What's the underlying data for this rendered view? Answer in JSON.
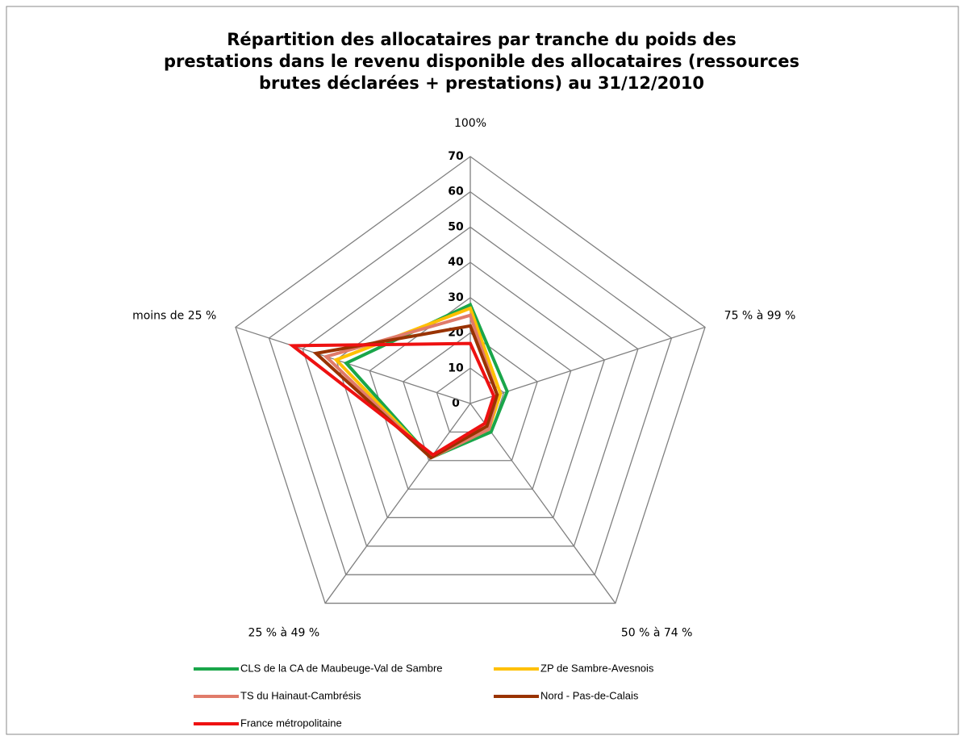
{
  "chart_data": {
    "type": "radar",
    "title": "Répartition des allocataires par tranche du poids des prestations dans le revenu disponible des allocataires (ressources brutes déclarées + prestations) au 31/12/2010",
    "categories": [
      "100%",
      "75 % à 99 %",
      "50 % à 74 %",
      "25 % à 49 %",
      "moins de 25 %"
    ],
    "ylim": [
      0,
      70
    ],
    "yticks": [
      0,
      10,
      20,
      30,
      40,
      50,
      60,
      70
    ],
    "grid": true,
    "legend": "bottom",
    "series": [
      {
        "name": "CLS de la CA de Maubeuge-Val de Sambre",
        "color": "#1aa64a",
        "values": [
          28,
          11,
          10,
          19,
          37
        ]
      },
      {
        "name": "ZP de Sambre-Avesnois",
        "color": "#ffc000",
        "values": [
          27,
          9,
          9,
          19,
          40
        ]
      },
      {
        "name": "TS du Hainaut-Cambrésis",
        "color": "#e07b6a",
        "values": [
          25,
          8,
          9,
          19,
          43
        ]
      },
      {
        "name": "Nord - Pas-de-Calais",
        "color": "#993300",
        "values": [
          22,
          8,
          8,
          19,
          46
        ]
      },
      {
        "name": "France métropolitaine",
        "color": "#ee1111",
        "values": [
          17,
          7,
          7,
          18,
          53
        ]
      }
    ]
  }
}
